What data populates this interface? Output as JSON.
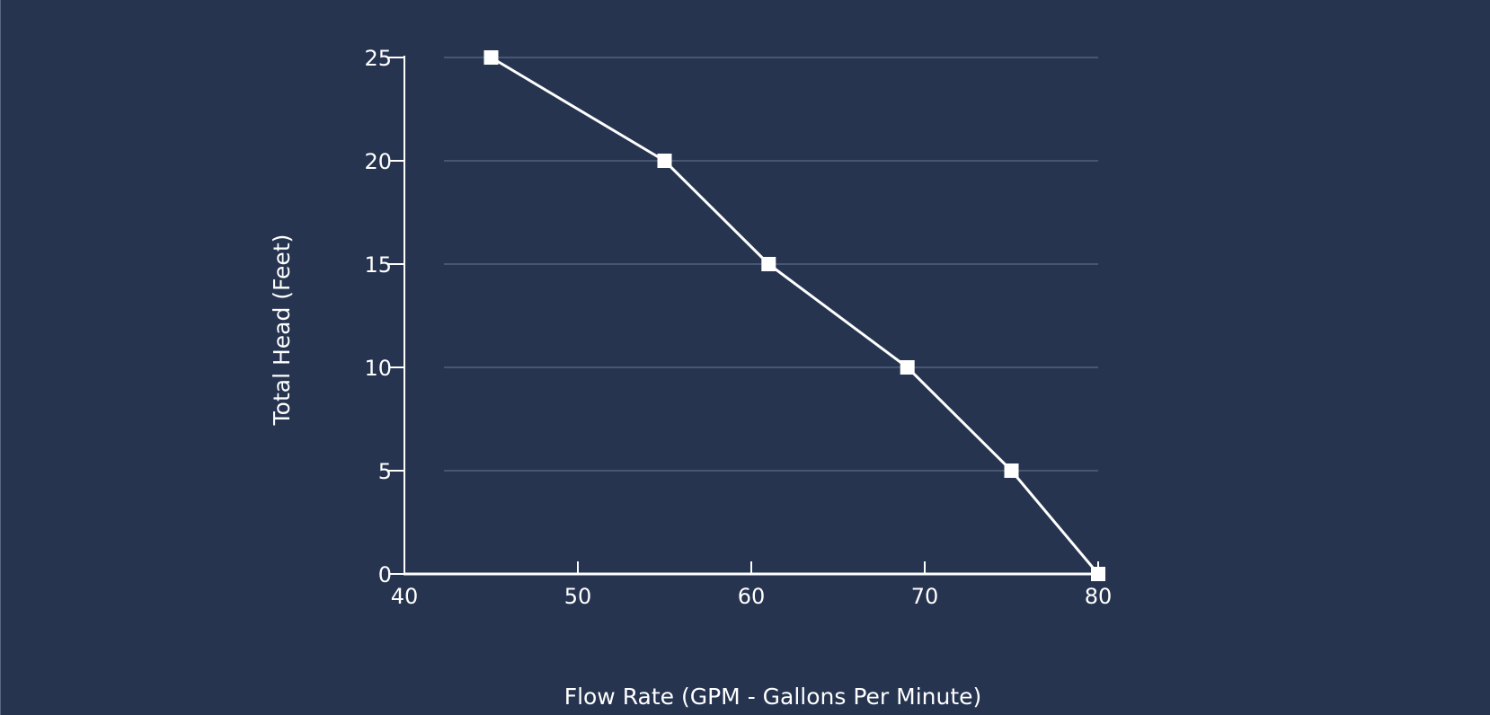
{
  "colors": {
    "background": "#263450",
    "foreground": "#ffffff",
    "gridline": "#6b7891"
  },
  "chart_data": {
    "type": "line",
    "title": "",
    "xlabel": "Flow Rate (GPM - Gallons Per Minute)",
    "ylabel": "Total Head (Feet)",
    "xlim": [
      40,
      80
    ],
    "ylim": [
      0,
      25
    ],
    "x_ticks": [
      40,
      50,
      60,
      70,
      80
    ],
    "y_ticks": [
      0,
      5,
      10,
      15,
      20,
      25
    ],
    "grid": "horizontal",
    "marker": "square",
    "series": [
      {
        "x": [
          45,
          55,
          61,
          69,
          75,
          80
        ],
        "y": [
          25,
          20,
          15,
          10,
          5,
          0
        ]
      }
    ]
  }
}
